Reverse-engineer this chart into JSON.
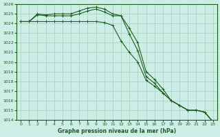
{
  "title": "Graphe pression niveau de la mer (hPa)",
  "background_color": "#cceee6",
  "grid_color": "#aaccbb",
  "line_color": "#1a5c1a",
  "xmin": 0,
  "xmax": 23,
  "ymin": 1014,
  "ymax": 1026,
  "x": [
    0,
    1,
    2,
    3,
    4,
    5,
    6,
    7,
    8,
    9,
    10,
    11,
    12,
    13,
    14,
    15,
    16,
    17,
    18,
    19,
    20,
    21,
    22,
    23
  ],
  "line1": [
    1024.2,
    1024.2,
    1025.0,
    1024.9,
    1025.0,
    1025.0,
    1025.0,
    1025.3,
    1025.6,
    1025.7,
    1025.5,
    1025.0,
    1024.8,
    1023.5,
    1022.0,
    1019.0,
    1018.2,
    1017.2,
    1016.0,
    1015.5,
    1015.0,
    1015.0,
    1014.8,
    1013.8
  ],
  "line2": [
    1024.2,
    1024.2,
    1024.9,
    1024.8,
    1024.8,
    1024.8,
    1024.8,
    1025.0,
    1025.3,
    1025.5,
    1025.2,
    1024.8,
    1024.8,
    1022.9,
    1021.2,
    1018.5,
    1017.8,
    1016.8,
    1016.0,
    1015.5,
    1015.0,
    1015.0,
    1014.8,
    1013.8
  ],
  "line3": [
    1024.2,
    1024.2,
    1024.2,
    1024.2,
    1024.2,
    1024.2,
    1024.2,
    1024.2,
    1024.2,
    1024.2,
    1024.1,
    1023.8,
    1022.2,
    1021.0,
    1020.0,
    1018.1,
    1017.5,
    1016.8,
    1016.0,
    1015.5,
    1015.0,
    1015.0,
    1014.8,
    1013.8
  ],
  "yticks": [
    1014,
    1015,
    1016,
    1017,
    1018,
    1019,
    1020,
    1021,
    1022,
    1023,
    1024,
    1025,
    1026
  ],
  "xticks": [
    0,
    1,
    2,
    3,
    4,
    5,
    6,
    7,
    8,
    9,
    10,
    11,
    12,
    13,
    14,
    15,
    16,
    17,
    18,
    19,
    20,
    21,
    22,
    23
  ]
}
